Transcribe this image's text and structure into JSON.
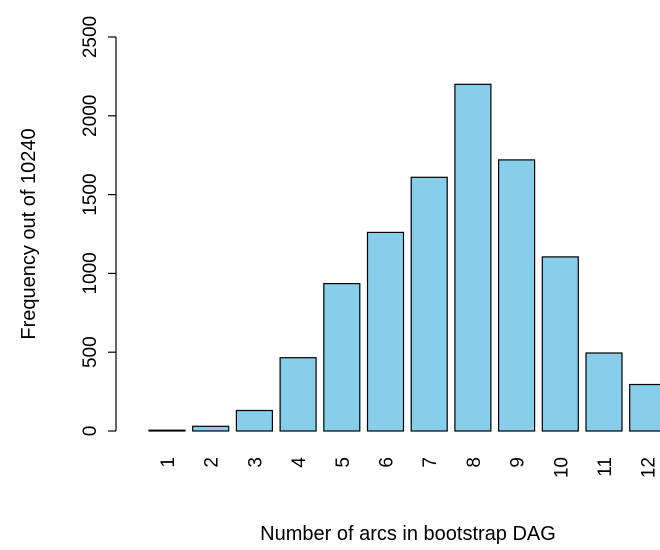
{
  "chart_data": {
    "type": "bar",
    "title": "",
    "xlabel": "Number of arcs in bootstrap DAG",
    "ylabel": "Frequency out of 10240",
    "categories": [
      "1",
      "2",
      "3",
      "4",
      "5",
      "6",
      "7",
      "8",
      "9",
      "10",
      "11",
      "12"
    ],
    "values": [
      5,
      30,
      130,
      465,
      935,
      1260,
      1610,
      2200,
      1720,
      1105,
      495,
      295
    ],
    "ylim": [
      0,
      2500
    ],
    "yticks": [
      "0",
      "500",
      "1000",
      "1500",
      "2000",
      "2500"
    ],
    "bar_color": "#87ceeb",
    "bar_border_color": "#000000",
    "grid": false,
    "legend": "none"
  }
}
